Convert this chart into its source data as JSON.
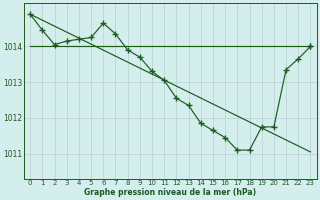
{
  "background_color": "#d4eeee",
  "grid_color": "#c0d8d8",
  "line_color": "#1a5c1a",
  "xlim": [
    -0.5,
    23.5
  ],
  "ylim": [
    1010.3,
    1015.2
  ],
  "yticks": [
    1011,
    1012,
    1013,
    1014
  ],
  "xticks": [
    0,
    1,
    2,
    3,
    4,
    5,
    6,
    7,
    8,
    9,
    10,
    11,
    12,
    13,
    14,
    15,
    16,
    17,
    18,
    19,
    20,
    21,
    22,
    23
  ],
  "xlabel": "Graphe pression niveau de la mer (hPa)",
  "series1_detail": {
    "x": [
      0,
      1,
      2,
      3,
      4,
      5,
      6,
      7,
      8,
      9,
      10,
      11,
      12,
      13,
      14,
      15,
      16,
      17,
      18,
      19,
      20,
      21,
      22,
      23
    ],
    "y": [
      1014.9,
      1014.45,
      1014.05,
      1014.15,
      1014.2,
      1014.25,
      1014.65,
      1014.35,
      1013.9,
      1013.7,
      1013.3,
      1013.05,
      1012.55,
      1012.35,
      1011.85,
      1011.65,
      1011.45,
      1011.1,
      1011.1,
      1011.75,
      1011.75,
      1013.35,
      1013.65,
      1014.0
    ]
  },
  "series2_flat": {
    "x": [
      0,
      14,
      23
    ],
    "y": [
      1014.0,
      1014.0,
      1014.0
    ]
  },
  "series3_diagonal": {
    "x": [
      0,
      23
    ],
    "y": [
      1014.9,
      1011.05
    ]
  }
}
